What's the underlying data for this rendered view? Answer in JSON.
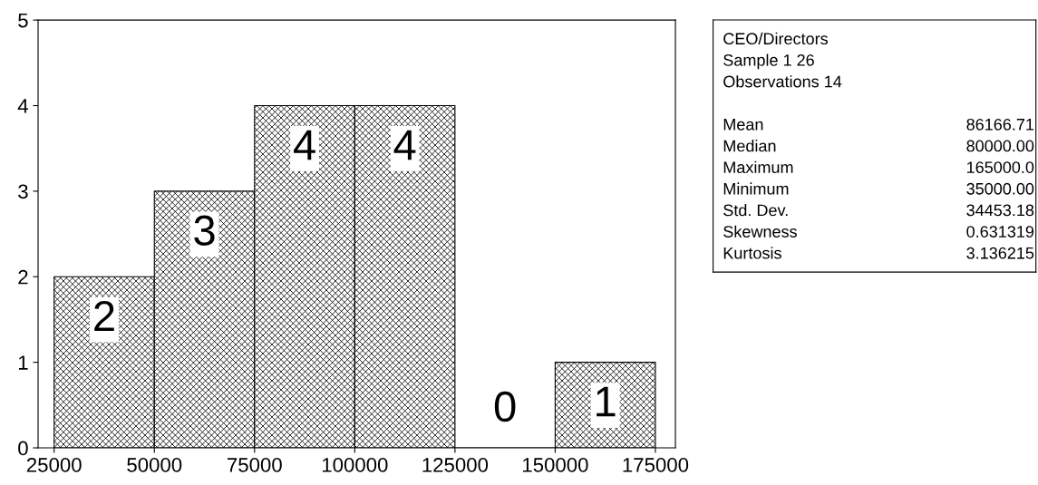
{
  "chart_data": [
    {
      "type": "histogram",
      "bins": [
        25000,
        50000,
        75000,
        100000,
        125000,
        150000,
        175000
      ],
      "values": [
        2,
        3,
        4,
        4,
        0,
        1
      ],
      "color": "#000000",
      "data_labels": true,
      "xlim": [
        21000,
        180000
      ],
      "xticks": [
        25000,
        50000,
        75000,
        100000,
        125000,
        150000,
        175000
      ],
      "ylim": [
        0,
        5
      ],
      "yticks": [
        0,
        1,
        2,
        3,
        4,
        5
      ],
      "grid": false,
      "legend": false
    },
    {
      "type": "other",
      "title": "CEO/Directors",
      "annotations": [
        "Sample 1 26",
        "Observations 14",
        "Mean",
        "86166.71",
        "Median",
        "80000.00",
        "Maximum",
        "165000.0",
        "Minimum",
        "35000.00",
        "Std. Dev.",
        "34453.18",
        "Skewness",
        "0.631319",
        "Kurtosis",
        "3.136215"
      ]
    }
  ]
}
